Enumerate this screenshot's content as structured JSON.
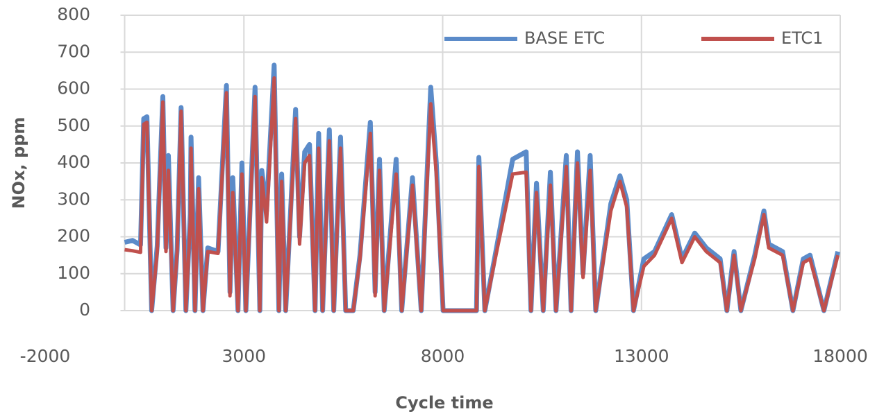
{
  "chart_data": {
    "type": "line",
    "x_label": "Cycle time",
    "y_label": "NOx, ppm",
    "x": [
      0,
      200,
      400,
      480,
      560,
      680,
      820,
      960,
      1040,
      1100,
      1220,
      1320,
      1420,
      1540,
      1650,
      1670,
      1770,
      1860,
      1970,
      2090,
      2350,
      2560,
      2650,
      2720,
      2850,
      2950,
      3050,
      3280,
      3400,
      3450,
      3570,
      3760,
      3880,
      3950,
      4050,
      4300,
      4400,
      4530,
      4650,
      4790,
      4880,
      4980,
      5150,
      5260,
      5430,
      5560,
      5750,
      5920,
      6180,
      6300,
      6410,
      6530,
      6830,
      6970,
      7240,
      7460,
      7700,
      7840,
      8010,
      8360,
      8850,
      8910,
      9060,
      9320,
      9760,
      10100,
      10220,
      10360,
      10530,
      10710,
      10850,
      11110,
      11230,
      11390,
      11530,
      11710,
      11850,
      12230,
      12460,
      12630,
      12800,
      13060,
      13330,
      13760,
      14020,
      14340,
      14630,
      14980,
      15150,
      15330,
      15500,
      15850,
      16080,
      16200,
      16550,
      16810,
      17070,
      17240,
      17590,
      17940
    ],
    "series": [
      {
        "name": "BASE ETC",
        "color": "#5b8bc9",
        "values": [
          185,
          190,
          178,
          520,
          525,
          0,
          175,
          580,
          170,
          420,
          0,
          165,
          550,
          0,
          260,
          470,
          0,
          360,
          0,
          170,
          160,
          610,
          50,
          360,
          0,
          400,
          0,
          605,
          0,
          380,
          270,
          665,
          0,
          370,
          0,
          545,
          200,
          430,
          450,
          0,
          480,
          0,
          490,
          0,
          470,
          0,
          0,
          150,
          510,
          50,
          410,
          0,
          410,
          0,
          360,
          0,
          605,
          400,
          0,
          0,
          0,
          415,
          0,
          150,
          410,
          430,
          0,
          345,
          0,
          375,
          0,
          420,
          0,
          430,
          100,
          420,
          0,
          290,
          365,
          300,
          0,
          140,
          160,
          260,
          140,
          210,
          170,
          140,
          0,
          160,
          0,
          150,
          270,
          180,
          160,
          0,
          140,
          150,
          0,
          160
        ]
      },
      {
        "name": "ETC1",
        "color": "#c0504d",
        "values": [
          165,
          162,
          158,
          505,
          510,
          0,
          160,
          565,
          160,
          380,
          0,
          160,
          540,
          0,
          240,
          440,
          0,
          330,
          0,
          160,
          155,
          590,
          40,
          320,
          0,
          370,
          0,
          580,
          0,
          360,
          240,
          630,
          0,
          350,
          0,
          520,
          180,
          400,
          420,
          0,
          440,
          0,
          460,
          0,
          440,
          0,
          0,
          140,
          480,
          40,
          380,
          0,
          370,
          0,
          340,
          0,
          560,
          370,
          0,
          0,
          0,
          390,
          0,
          140,
          370,
          375,
          0,
          320,
          0,
          340,
          0,
          390,
          0,
          400,
          90,
          380,
          0,
          270,
          350,
          280,
          0,
          120,
          150,
          250,
          130,
          200,
          160,
          130,
          0,
          150,
          0,
          140,
          260,
          170,
          150,
          0,
          130,
          140,
          0,
          150
        ]
      }
    ],
    "xlim": [
      -2000,
      18000
    ],
    "xticks": [
      -2000,
      3000,
      8000,
      13000,
      18000
    ],
    "ylim": [
      0,
      800
    ],
    "yticks": [
      0,
      100,
      200,
      300,
      400,
      500,
      600,
      700,
      800
    ],
    "grid": true,
    "legend": "top-right"
  }
}
